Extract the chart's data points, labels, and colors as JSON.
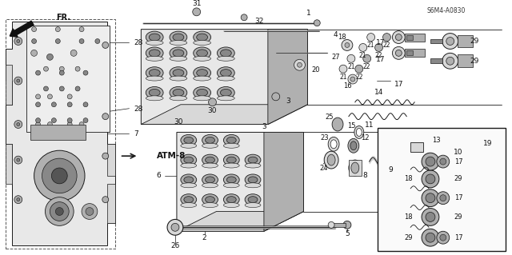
{
  "bg_color": "#ffffff",
  "lc": "#1a1a1a",
  "fig_w": 6.4,
  "fig_h": 3.19,
  "diagram_code": "S6M4-A0830",
  "atm_label": "ATM-8",
  "fr_label": "FR.",
  "gray_light": "#d8d8d8",
  "gray_mid": "#b0b0b0",
  "gray_dark": "#888888",
  "gray_body": "#e8e8e8",
  "dashed_color": "#555555"
}
